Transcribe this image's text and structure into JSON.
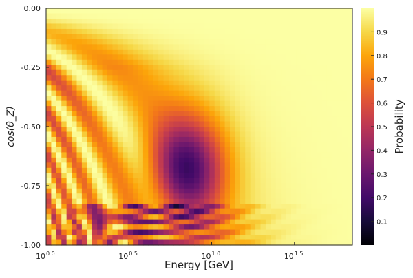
{
  "chart_data": {
    "type": "heatmap",
    "title": "",
    "xlabel": "Energy [GeV]",
    "ylabel": "cos(θ_Z)",
    "x_scale": "log10",
    "x_range": [
      1.0,
      70.8
    ],
    "y_range": [
      -1.0,
      0.0
    ],
    "x_ticks": [
      {
        "value": 1.0,
        "base": "10",
        "exp": "0.0"
      },
      {
        "value": 3.162,
        "base": "10",
        "exp": "0.5"
      },
      {
        "value": 10.0,
        "base": "10",
        "exp": "1.0"
      },
      {
        "value": 31.62,
        "base": "10",
        "exp": "1.5"
      }
    ],
    "y_ticks": [
      {
        "value": 0.0,
        "label": "0.00"
      },
      {
        "value": -0.25,
        "label": "-0.25"
      },
      {
        "value": -0.5,
        "label": "-0.50"
      },
      {
        "value": -0.75,
        "label": "-0.75"
      },
      {
        "value": -1.0,
        "label": "-1.00"
      }
    ],
    "colorbar": {
      "label": "Probability",
      "range": [
        0.0,
        1.0
      ],
      "colormap": "inferno",
      "ticks": [
        {
          "value": 0.1,
          "label": "0.1"
        },
        {
          "value": 0.2,
          "label": "0.2"
        },
        {
          "value": 0.3,
          "label": "0.3"
        },
        {
          "value": 0.4,
          "label": "0.4"
        },
        {
          "value": 0.5,
          "label": "0.5"
        },
        {
          "value": 0.6,
          "label": "0.6"
        },
        {
          "value": 0.7,
          "label": "0.7"
        },
        {
          "value": 0.8,
          "label": "0.8"
        },
        {
          "value": 0.9,
          "label": "0.9"
        }
      ]
    },
    "grid": false,
    "legend": "none"
  }
}
